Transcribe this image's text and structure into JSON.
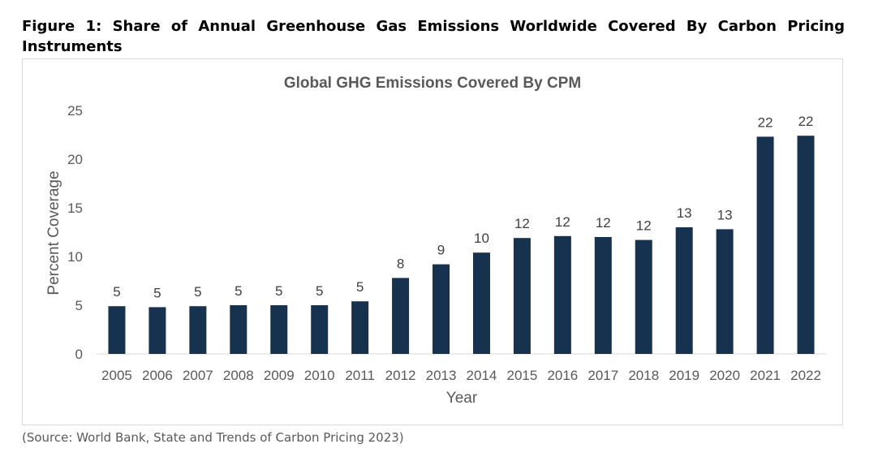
{
  "figure_caption": "Figure 1: Share of Annual Greenhouse Gas Emissions Worldwide Covered By Carbon Pricing Instruments",
  "source": "(Source: World Bank, State and Trends of Carbon Pricing 2023)",
  "chart_data": {
    "type": "bar",
    "title": "Global GHG Emissions Covered By CPM",
    "xlabel": "Year",
    "ylabel": "Percent Coverage",
    "ylim": [
      0,
      25
    ],
    "yticks": [
      0,
      5,
      10,
      15,
      20,
      25
    ],
    "grid": false,
    "legend": "none",
    "bar_color": "#17324f",
    "categories": [
      "2005",
      "2006",
      "2007",
      "2008",
      "2009",
      "2010",
      "2011",
      "2012",
      "2013",
      "2014",
      "2015",
      "2016",
      "2017",
      "2018",
      "2019",
      "2020",
      "2021",
      "2022"
    ],
    "values": [
      4.9,
      4.8,
      4.9,
      5.0,
      5.0,
      5.0,
      5.4,
      7.8,
      9.2,
      10.4,
      11.9,
      12.1,
      12.0,
      11.7,
      13.0,
      12.8,
      22.3,
      22.4
    ],
    "data_labels": [
      "5",
      "5",
      "5",
      "5",
      "5",
      "5",
      "5",
      "8",
      "9",
      "10",
      "12",
      "12",
      "12",
      "12",
      "13",
      "13",
      "22",
      "22"
    ]
  }
}
